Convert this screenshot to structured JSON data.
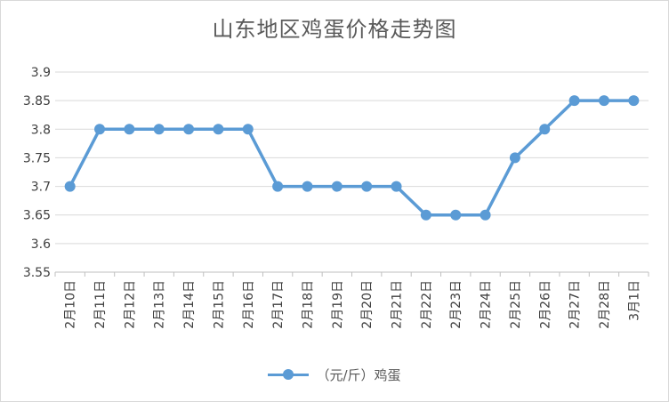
{
  "chart_data": {
    "type": "line",
    "title": "山东地区鸡蛋价格走势图",
    "categories": [
      "2月10日",
      "2月11日",
      "2月12日",
      "2月13日",
      "2月14日",
      "2月15日",
      "2月16日",
      "2月17日",
      "2月18日",
      "2月19日",
      "2月20日",
      "2月21日",
      "2月22日",
      "2月23日",
      "2月24日",
      "2月25日",
      "2月26日",
      "2月27日",
      "2月28日",
      "3月1日"
    ],
    "series": [
      {
        "name": "（元/斤）鸡蛋",
        "values": [
          3.7,
          3.8,
          3.8,
          3.8,
          3.8,
          3.8,
          3.8,
          3.7,
          3.7,
          3.7,
          3.7,
          3.7,
          3.65,
          3.65,
          3.65,
          3.75,
          3.8,
          3.85,
          3.85,
          3.85
        ],
        "color": "#5b9bd5"
      }
    ],
    "ylim": [
      3.55,
      3.9
    ],
    "yticks": [
      "3.55",
      "3.6",
      "3.65",
      "3.7",
      "3.75",
      "3.8",
      "3.85",
      "3.9"
    ],
    "grid": true,
    "legend": "bottom"
  }
}
